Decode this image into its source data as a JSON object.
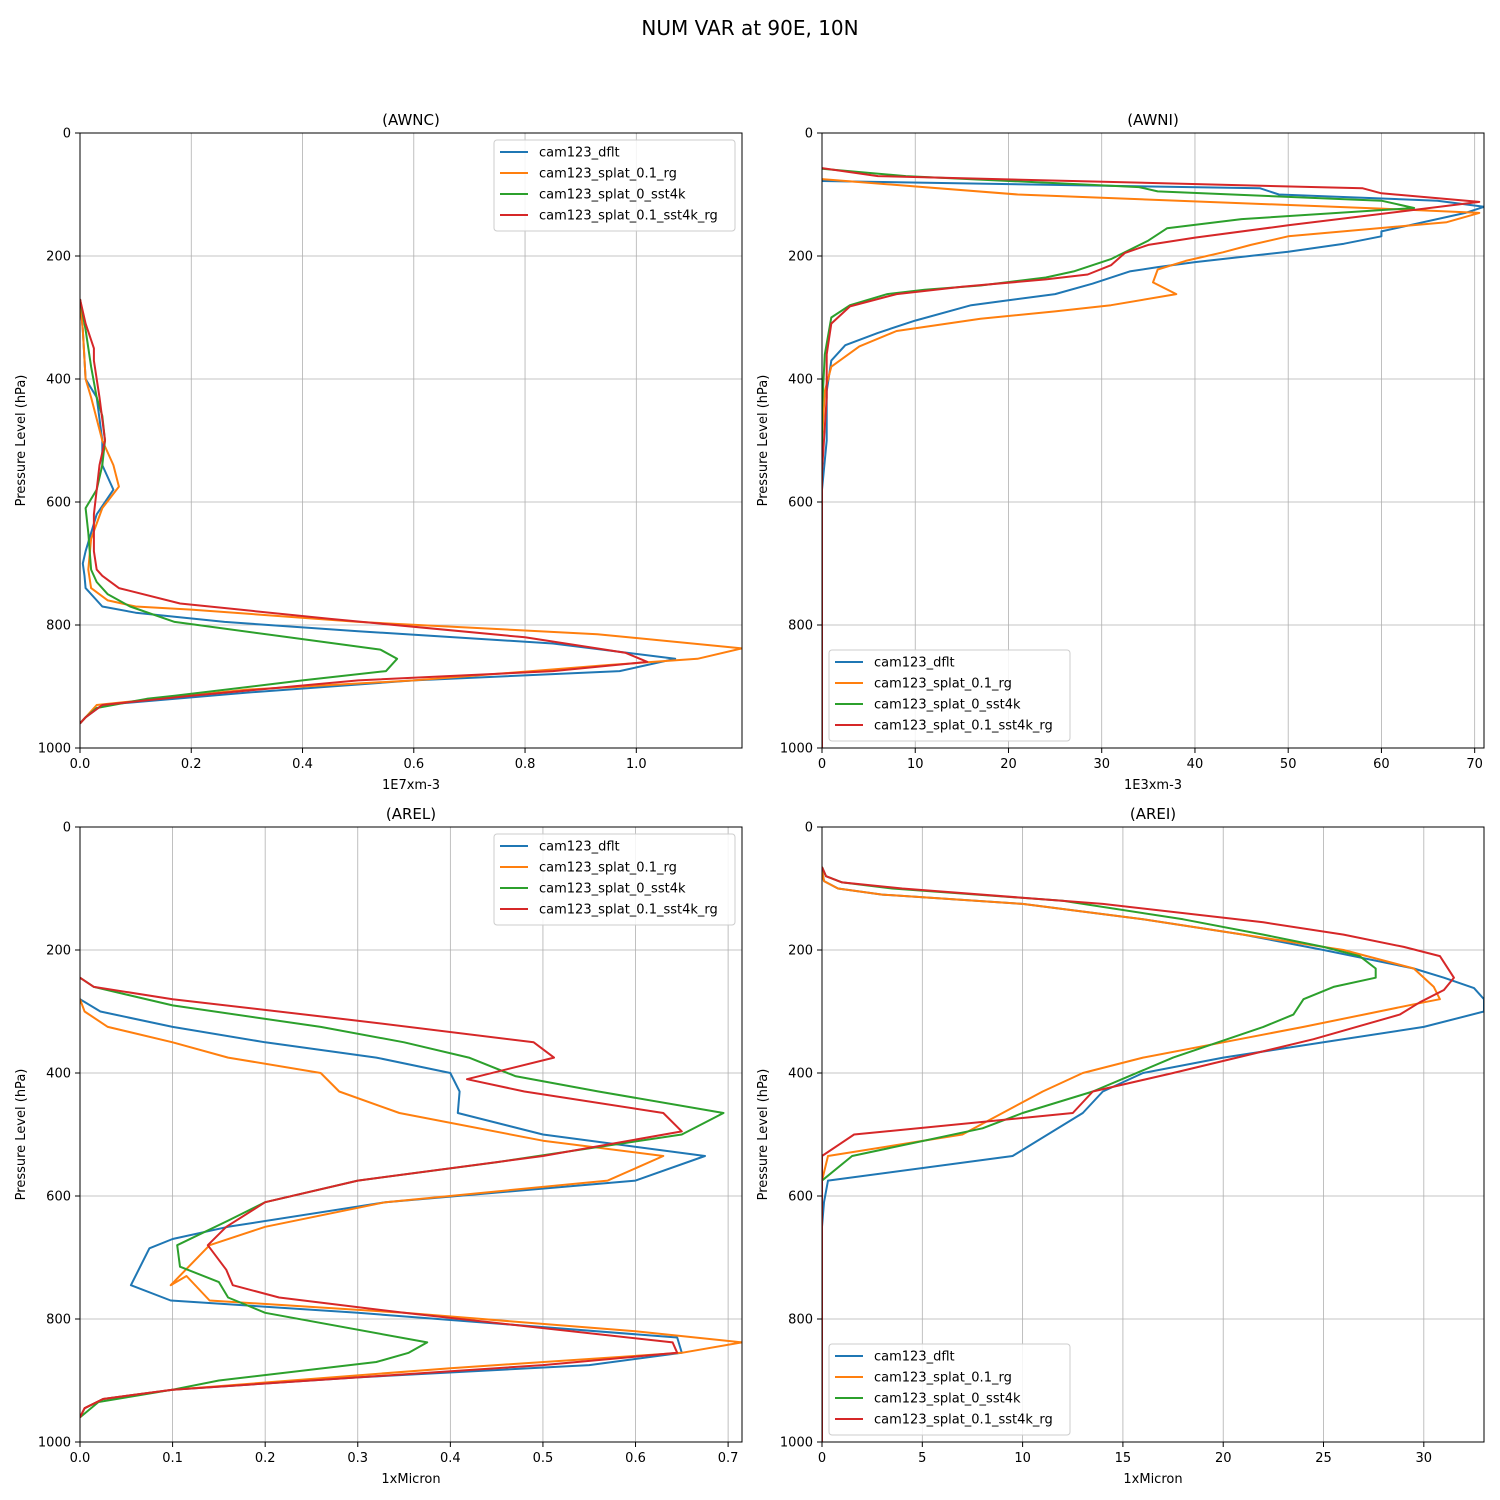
{
  "figure_title": "NUM VAR at 90E, 10N",
  "chart_data": [
    {
      "type": "line",
      "title": "(AWNC)",
      "xlabel": "1E7xm-3",
      "ylabel": "Pressure Level (hPa)",
      "xlim": [
        0,
        1.19
      ],
      "ylim": [
        1000,
        0
      ],
      "xticks": [
        0,
        0.2,
        0.4,
        0.6,
        0.8,
        1.0
      ],
      "xtick_labels": [
        "0.0",
        "0.2",
        "0.4",
        "0.6",
        "0.8",
        "1.0"
      ],
      "yticks": [
        0,
        200,
        400,
        600,
        800,
        1000
      ],
      "ytick_labels": [
        "0",
        "200",
        "400",
        "600",
        "800",
        "1000"
      ],
      "grid": true,
      "legend": "upper right",
      "series": [
        {
          "name": "cam123_dflt",
          "color": "#1f77b4",
          "x": [
            0,
            0.005,
            0.01,
            0.03,
            0.04,
            0.04,
            0.055,
            0.06,
            0.03,
            0.01,
            0.005,
            0.008,
            0.01,
            0.04,
            0.1,
            0.26,
            0.5,
            0.85,
            1.07,
            0.97,
            0.6,
            0.3,
            0.04,
            0.01,
            0
          ],
          "y": [
            270,
            320,
            400,
            430,
            500,
            540,
            570,
            580,
            620,
            680,
            700,
            720,
            740,
            770,
            780,
            795,
            810,
            830,
            855,
            875,
            890,
            910,
            930,
            950,
            960
          ]
        },
        {
          "name": "cam123_splat_0.1_rg",
          "color": "#ff7f0e",
          "x": [
            0,
            0.005,
            0.01,
            0.02,
            0.04,
            0.06,
            0.07,
            0.04,
            0.02,
            0.015,
            0.02,
            0.05,
            0.1,
            0.2,
            0.5,
            0.93,
            1.19,
            1.11,
            0.95,
            0.6,
            0.3,
            0.03,
            0.01,
            0
          ],
          "y": [
            270,
            320,
            400,
            430,
            500,
            540,
            575,
            610,
            660,
            710,
            740,
            760,
            770,
            775,
            795,
            815,
            838,
            855,
            865,
            890,
            905,
            930,
            950,
            960
          ]
        },
        {
          "name": "cam123_splat_0_sst4k",
          "color": "#2ca02c",
          "x": [
            0,
            0.01,
            0.02,
            0.03,
            0.04,
            0.045,
            0.04,
            0.03,
            0.01,
            0.015,
            0.02,
            0.03,
            0.05,
            0.09,
            0.17,
            0.54,
            0.57,
            0.55,
            0.4,
            0.17,
            0.12,
            0.03,
            0.01,
            0
          ],
          "y": [
            270,
            320,
            380,
            430,
            460,
            500,
            540,
            580,
            610,
            650,
            710,
            730,
            750,
            770,
            795,
            840,
            855,
            875,
            890,
            915,
            920,
            935,
            950,
            960
          ]
        },
        {
          "name": "cam123_splat_0.1_sst4k_rg",
          "color": "#d62728",
          "x": [
            0,
            0.01,
            0.025,
            0.025,
            0.035,
            0.045,
            0.035,
            0.03,
            0.025,
            0.025,
            0.03,
            0.04,
            0.07,
            0.18,
            0.45,
            0.8,
            0.98,
            1.02,
            0.85,
            0.5,
            0.2,
            0.04,
            0.01,
            0
          ],
          "y": [
            270,
            310,
            350,
            370,
            430,
            500,
            540,
            580,
            620,
            680,
            710,
            720,
            740,
            765,
            790,
            820,
            845,
            860,
            875,
            890,
            915,
            930,
            950,
            960
          ]
        }
      ]
    },
    {
      "type": "line",
      "title": "(AWNI)",
      "xlabel": "1E3xm-3",
      "ylabel": "Pressure Level (hPa)",
      "xlim": [
        0,
        71
      ],
      "ylim": [
        1000,
        0
      ],
      "xticks": [
        0,
        10,
        20,
        30,
        40,
        50,
        60,
        70
      ],
      "xtick_labels": [
        "0",
        "10",
        "20",
        "30",
        "40",
        "50",
        "60",
        "70"
      ],
      "yticks": [
        0,
        200,
        400,
        600,
        800,
        1000
      ],
      "ytick_labels": [
        "0",
        "200",
        "400",
        "600",
        "800",
        "1000"
      ],
      "grid": true,
      "legend": "lower left",
      "series": [
        {
          "name": "cam123_dflt",
          "color": "#1f77b4",
          "x": [
            0,
            47,
            49,
            66,
            71,
            69,
            60,
            60,
            56,
            50,
            40,
            36,
            33,
            29,
            25,
            20,
            16,
            10,
            6,
            2.5,
            1,
            0.5,
            0.5,
            0,
            0
          ],
          "y": [
            78,
            90,
            100,
            110,
            120,
            130,
            160,
            168,
            180,
            193,
            210,
            218,
            225,
            245,
            262,
            272,
            280,
            305,
            325,
            345,
            370,
            420,
            500,
            580,
            1000
          ]
        },
        {
          "name": "cam123_splat_0.1_rg",
          "color": "#ff7f0e",
          "x": [
            0,
            21,
            60,
            70.5,
            67,
            50,
            46,
            43,
            39,
            36,
            35.5,
            38,
            31,
            25,
            17,
            8,
            4,
            1,
            0.3,
            0,
            0
          ],
          "y": [
            75,
            100,
            123,
            130,
            145,
            168,
            182,
            194,
            208,
            222,
            243,
            262,
            280,
            290,
            302,
            322,
            347,
            380,
            420,
            500,
            1000
          ]
        },
        {
          "name": "cam123_splat_0_sst4k",
          "color": "#2ca02c",
          "x": [
            0,
            9,
            34,
            36,
            60,
            63.5,
            45,
            37,
            35,
            31,
            27,
            24,
            17,
            11,
            7,
            3,
            1,
            0.3,
            0,
            0
          ],
          "y": [
            58,
            70,
            88,
            95,
            110,
            122,
            140,
            155,
            175,
            205,
            225,
            235,
            248,
            255,
            262,
            280,
            300,
            360,
            450,
            1000
          ]
        },
        {
          "name": "cam123_splat_0.1_sst4k_rg",
          "color": "#d62728",
          "x": [
            0,
            6,
            58,
            60,
            70.5,
            50,
            40,
            35,
            32.5,
            31,
            28.5,
            24,
            15,
            8,
            3,
            1,
            0.5,
            0.5,
            0,
            0
          ],
          "y": [
            57,
            70,
            90,
            98,
            112,
            150,
            170,
            182,
            195,
            215,
            230,
            238,
            250,
            262,
            282,
            310,
            360,
            430,
            550,
            1000
          ]
        }
      ]
    },
    {
      "type": "line",
      "title": "(AREL)",
      "xlabel": "1xMicron",
      "ylabel": "Pressure Level (hPa)",
      "xlim": [
        0,
        0.715
      ],
      "ylim": [
        1000,
        0
      ],
      "xticks": [
        0,
        0.1,
        0.2,
        0.3,
        0.4,
        0.5,
        0.6,
        0.7
      ],
      "xtick_labels": [
        "0.0",
        "0.1",
        "0.2",
        "0.3",
        "0.4",
        "0.5",
        "0.6",
        "0.7"
      ],
      "yticks": [
        0,
        200,
        400,
        600,
        800,
        1000
      ],
      "ytick_labels": [
        "0",
        "200",
        "400",
        "600",
        "800",
        "1000"
      ],
      "grid": true,
      "legend": "upper right",
      "series": [
        {
          "name": "cam123_dflt",
          "color": "#1f77b4",
          "x": [
            0,
            0.022,
            0.1,
            0.2,
            0.32,
            0.4,
            0.41,
            0.408,
            0.5,
            0.675,
            0.6,
            0.33,
            0.16,
            0.1,
            0.075,
            0.055,
            0.098,
            0.3,
            0.645,
            0.65,
            0.55,
            0.3,
            0.1,
            0.025,
            0.005,
            0
          ],
          "y": [
            280,
            300,
            325,
            350,
            375,
            400,
            430,
            465,
            500,
            535,
            575,
            610,
            650,
            670,
            685,
            745,
            770,
            790,
            830,
            855,
            875,
            895,
            915,
            930,
            945,
            960
          ]
        },
        {
          "name": "cam123_splat_0.1_rg",
          "color": "#ff7f0e",
          "x": [
            0,
            0.005,
            0.03,
            0.1,
            0.16,
            0.26,
            0.28,
            0.345,
            0.5,
            0.63,
            0.57,
            0.33,
            0.2,
            0.14,
            0.098,
            0.115,
            0.14,
            0.35,
            0.6,
            0.715,
            0.65,
            0.4,
            0.1,
            0.025,
            0.005,
            0
          ],
          "y": [
            280,
            300,
            325,
            350,
            375,
            400,
            430,
            465,
            510,
            535,
            575,
            610,
            650,
            680,
            745,
            730,
            770,
            790,
            820,
            838,
            855,
            880,
            915,
            930,
            945,
            960
          ]
        },
        {
          "name": "cam123_splat_0_sst4k",
          "color": "#2ca02c",
          "x": [
            0,
            0.015,
            0.1,
            0.26,
            0.35,
            0.42,
            0.47,
            0.56,
            0.695,
            0.65,
            0.45,
            0.3,
            0.2,
            0.16,
            0.105,
            0.108,
            0.15,
            0.16,
            0.2,
            0.375,
            0.355,
            0.32,
            0.15,
            0.1,
            0.02,
            0
          ],
          "y": [
            245,
            260,
            290,
            325,
            350,
            375,
            405,
            430,
            465,
            500,
            545,
            575,
            610,
            640,
            680,
            715,
            740,
            765,
            790,
            838,
            855,
            870,
            900,
            915,
            935,
            960
          ]
        },
        {
          "name": "cam123_splat_0.1_sst4k_rg",
          "color": "#d62728",
          "x": [
            0,
            0.015,
            0.1,
            0.3,
            0.49,
            0.512,
            0.418,
            0.48,
            0.63,
            0.65,
            0.5,
            0.3,
            0.2,
            0.158,
            0.138,
            0.158,
            0.165,
            0.215,
            0.35,
            0.64,
            0.645,
            0.5,
            0.3,
            0.1,
            0.025,
            0.005,
            0
          ],
          "y": [
            245,
            260,
            280,
            315,
            350,
            375,
            410,
            430,
            465,
            495,
            535,
            575,
            610,
            650,
            680,
            720,
            745,
            765,
            790,
            838,
            855,
            875,
            895,
            915,
            930,
            945,
            960
          ]
        }
      ]
    },
    {
      "type": "line",
      "title": "(AREI)",
      "xlabel": "1xMicron",
      "ylabel": "Pressure Level (hPa)",
      "xlim": [
        0,
        33
      ],
      "ylim": [
        1000,
        0
      ],
      "xticks": [
        0,
        5,
        10,
        15,
        20,
        25,
        30
      ],
      "xtick_labels": [
        "0",
        "5",
        "10",
        "15",
        "20",
        "25",
        "30"
      ],
      "yticks": [
        0,
        200,
        400,
        600,
        800,
        1000
      ],
      "ytick_labels": [
        "0",
        "200",
        "400",
        "600",
        "800",
        "1000"
      ],
      "grid": true,
      "legend": "lower left",
      "series": [
        {
          "name": "cam123_dflt",
          "color": "#1f77b4",
          "x": [
            0,
            0.1,
            0.8,
            3,
            10,
            16,
            21,
            25,
            29.5,
            31,
            32.5,
            33,
            33,
            30,
            25,
            20,
            16,
            14,
            13,
            9.5,
            0.3,
            0.1,
            0,
            0
          ],
          "y": [
            70,
            88,
            100,
            110,
            125,
            150,
            175,
            200,
            230,
            245,
            262,
            280,
            300,
            325,
            350,
            375,
            400,
            430,
            465,
            535,
            575,
            610,
            650,
            1000
          ]
        },
        {
          "name": "cam123_splat_0.1_rg",
          "color": "#ff7f0e",
          "x": [
            0,
            0.1,
            0.8,
            3,
            10,
            16,
            21,
            26,
            29.5,
            30.5,
            30.8,
            30,
            27,
            24,
            20,
            16,
            13,
            11,
            7,
            0.3,
            0,
            0
          ],
          "y": [
            70,
            88,
            100,
            110,
            125,
            150,
            175,
            200,
            230,
            260,
            280,
            285,
            305,
            325,
            350,
            375,
            400,
            430,
            500,
            535,
            575,
            1000
          ]
        },
        {
          "name": "cam123_splat_0_sst4k",
          "color": "#2ca02c",
          "x": [
            0,
            0.2,
            1,
            3.5,
            12,
            18,
            22,
            25,
            26.8,
            27.6,
            27.6,
            25.5,
            24,
            23.5,
            22,
            17.5,
            13.5,
            10,
            8,
            1.5,
            0,
            0
          ],
          "y": [
            65,
            80,
            90,
            100,
            120,
            150,
            175,
            195,
            210,
            230,
            245,
            260,
            280,
            305,
            325,
            375,
            430,
            465,
            490,
            535,
            575,
            1000
          ]
        },
        {
          "name": "cam123_splat_0.1_sst4k_rg",
          "color": "#d62728",
          "x": [
            0,
            0.2,
            1,
            4,
            14,
            22,
            26,
            29,
            30.8,
            31.5,
            31,
            29.8,
            28.8,
            24.5,
            17.5,
            13.5,
            12.5,
            1.6,
            0,
            0
          ],
          "y": [
            65,
            80,
            90,
            100,
            125,
            155,
            175,
            195,
            210,
            245,
            265,
            285,
            305,
            345,
            400,
            430,
            465,
            500,
            535,
            1000
          ]
        }
      ]
    }
  ]
}
